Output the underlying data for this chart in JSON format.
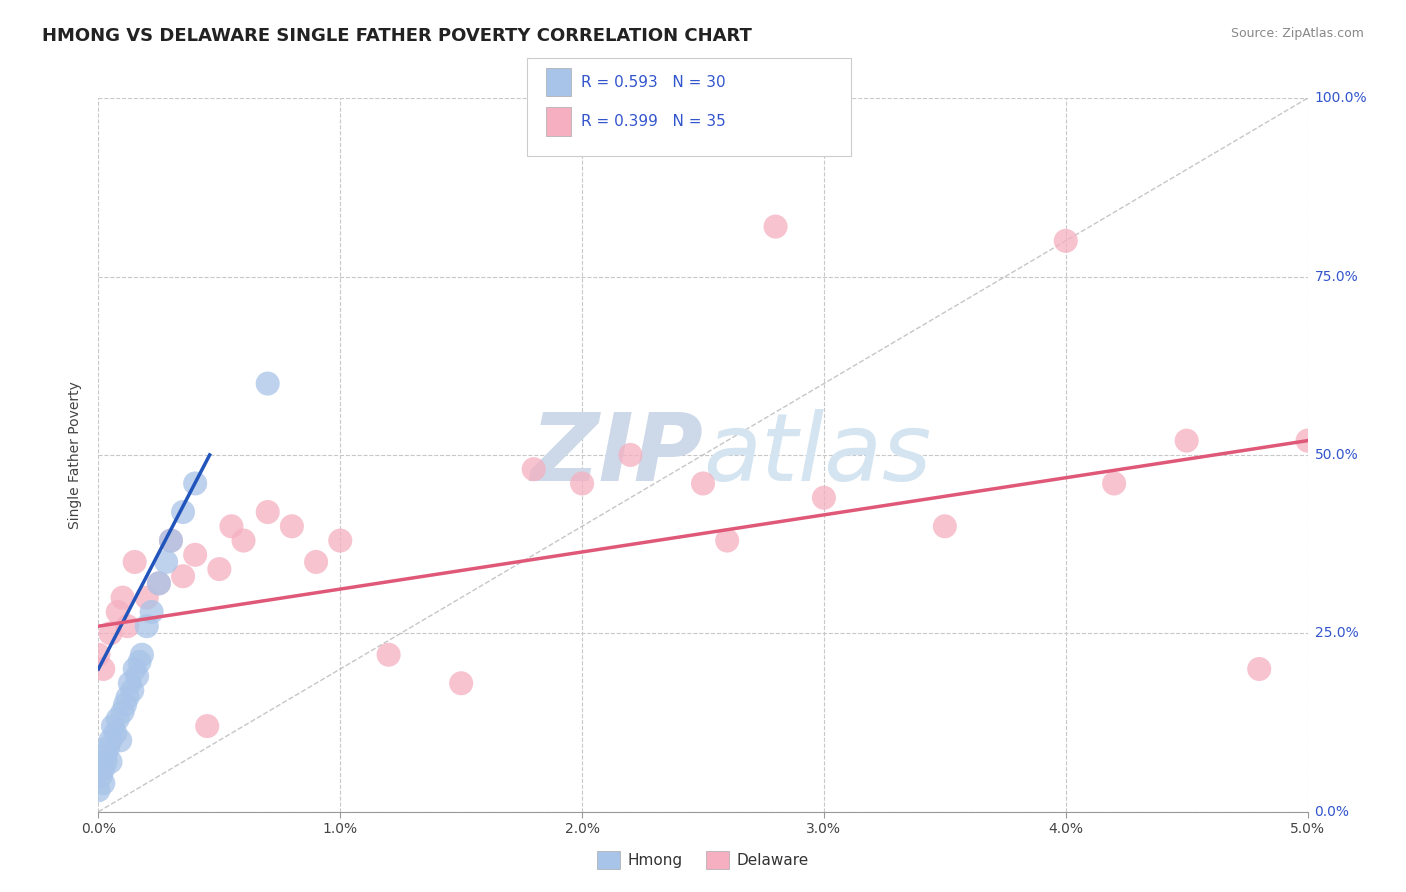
{
  "title": "HMONG VS DELAWARE SINGLE FATHER POVERTY CORRELATION CHART",
  "source": "Source: ZipAtlas.com",
  "ylabel_label": "Single Father Poverty",
  "xlim": [
    0.0,
    5.0
  ],
  "ylim": [
    0.0,
    100.0
  ],
  "x_ticks": [
    0.0,
    1.0,
    2.0,
    3.0,
    4.0,
    5.0
  ],
  "y_ticks": [
    0.0,
    25.0,
    50.0,
    75.0,
    100.0
  ],
  "hmong_R": 0.593,
  "hmong_N": 30,
  "delaware_R": 0.399,
  "delaware_N": 35,
  "hmong_color": "#a8c4e8",
  "delaware_color": "#f5afc0",
  "hmong_line_color": "#2255bb",
  "delaware_line_color": "#e05878",
  "reference_line_color": "#b8b8b8",
  "grid_color": "#c8c8c8",
  "background_color": "#ffffff",
  "watermark_color": "#cdd8e8",
  "legend_hmong_label": "Hmong",
  "legend_delaware_label": "Delaware",
  "hmong_x": [
    0.0,
    0.01,
    0.02,
    0.02,
    0.03,
    0.03,
    0.04,
    0.05,
    0.05,
    0.06,
    0.07,
    0.08,
    0.09,
    0.1,
    0.11,
    0.12,
    0.13,
    0.14,
    0.15,
    0.16,
    0.17,
    0.18,
    0.2,
    0.22,
    0.25,
    0.28,
    0.3,
    0.35,
    0.4,
    0.7
  ],
  "hmong_y": [
    3.0,
    5.0,
    6.0,
    4.0,
    7.0,
    8.0,
    9.0,
    10.0,
    7.0,
    12.0,
    11.0,
    13.0,
    10.0,
    14.0,
    15.0,
    16.0,
    18.0,
    17.0,
    20.0,
    19.0,
    21.0,
    22.0,
    26.0,
    28.0,
    32.0,
    35.0,
    38.0,
    42.0,
    46.0,
    60.0
  ],
  "delaware_x": [
    0.0,
    0.02,
    0.05,
    0.08,
    0.1,
    0.12,
    0.15,
    0.2,
    0.25,
    0.3,
    0.35,
    0.4,
    0.5,
    0.55,
    0.6,
    0.7,
    0.8,
    0.9,
    1.0,
    1.2,
    1.5,
    1.8,
    2.0,
    2.2,
    2.5,
    2.8,
    3.0,
    3.5,
    4.0,
    4.2,
    4.5,
    4.8,
    5.0,
    2.6,
    0.45
  ],
  "delaware_y": [
    22.0,
    20.0,
    25.0,
    28.0,
    30.0,
    26.0,
    35.0,
    30.0,
    32.0,
    38.0,
    33.0,
    36.0,
    34.0,
    40.0,
    38.0,
    42.0,
    40.0,
    35.0,
    38.0,
    22.0,
    18.0,
    48.0,
    46.0,
    50.0,
    46.0,
    82.0,
    44.0,
    40.0,
    80.0,
    46.0,
    52.0,
    20.0,
    52.0,
    38.0,
    12.0
  ],
  "hmong_line_x": [
    0.0,
    0.46
  ],
  "hmong_line_y": [
    20.0,
    50.0
  ],
  "delaware_line_x": [
    0.0,
    5.0
  ],
  "delaware_line_y": [
    26.0,
    52.0
  ]
}
